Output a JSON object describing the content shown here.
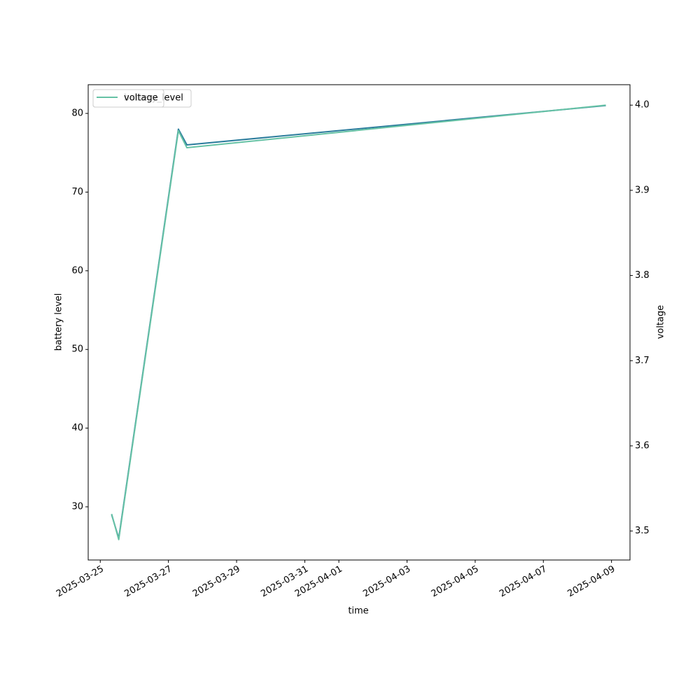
{
  "chart_data": {
    "type": "line",
    "x_label": "time",
    "y_label": "battery level",
    "y2_label": "voltage",
    "x": [
      "2025-03-25T08:00",
      "2025-03-25T13:00",
      "2025-03-27T07:00",
      "2025-03-27T13:00",
      "2025-04-08T20:00"
    ],
    "series": [
      {
        "name": "battery_level",
        "color": "#2b7c9c",
        "values": [
          29,
          26,
          78,
          76,
          81
        ]
      },
      {
        "name": "voltage",
        "color": "#66c2a5",
        "axis": "y2",
        "values": [
          3.52,
          3.49,
          3.97,
          3.95,
          4.0
        ]
      }
    ],
    "xlim": [
      "2025-03-24T15:30",
      "2025-04-09T13:00"
    ],
    "xticks": [
      "2025-03-25",
      "2025-03-27",
      "2025-03-29",
      "2025-03-31",
      "2025-04-01",
      "2025-04-03",
      "2025-04-05",
      "2025-04-07",
      "2025-04-09"
    ],
    "ylim": [
      23.24,
      83.65
    ],
    "yticks": [
      30,
      40,
      50,
      60,
      70,
      80
    ],
    "y2lim": [
      3.466,
      4.024
    ],
    "y2ticks": [
      3.5,
      3.6,
      3.7,
      3.8,
      3.9,
      {
        "value": 4,
        "label": "4.0"
      }
    ],
    "legend": "upper left",
    "grid": false
  }
}
